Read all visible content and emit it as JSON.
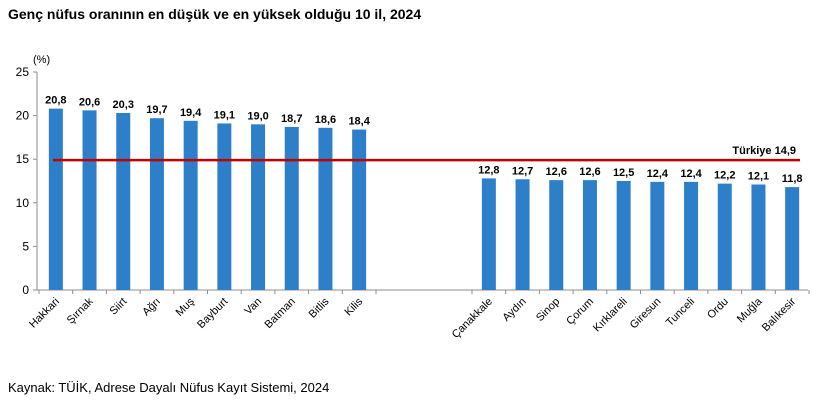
{
  "title": "Genç nüfus oranının en düşük ve en yüksek olduğu 10 il, 2024",
  "source": "Kaynak: TÜİK, Adrese Dayalı Nüfus Kayıt Sistemi, 2024",
  "colors": {
    "bar": "#2E7FC9",
    "reference": "#C00000",
    "axis": "#8c8c8c"
  },
  "chart_data": {
    "type": "bar",
    "title": "Genç nüfus oranının en düşük ve en yüksek olduğu 10 il, 2024",
    "ylabel": "(%)",
    "ylim": [
      0,
      25
    ],
    "yticks": [
      "0",
      "5",
      "10",
      "15",
      "20",
      "25"
    ],
    "groups": [
      {
        "categories": [
          "Hakkari",
          "Şırnak",
          "Siirt",
          "Ağrı",
          "Muş",
          "Bayburt",
          "Van",
          "Batman",
          "Bitlis",
          "Kilis"
        ],
        "values": [
          20.8,
          20.6,
          20.3,
          19.7,
          19.4,
          19.1,
          19.0,
          18.7,
          18.6,
          18.4
        ],
        "labels": [
          "20,8",
          "20,6",
          "20,3",
          "19,7",
          "19,4",
          "19,1",
          "19,0",
          "18,7",
          "18,6",
          "18,4"
        ]
      },
      {
        "categories": [
          "Çanakkale",
          "Aydın",
          "Sinop",
          "Çorum",
          "Kırklareli",
          "Giresun",
          "Tunceli",
          "Ordu",
          "Muğla",
          "Balıkesir"
        ],
        "values": [
          12.8,
          12.7,
          12.6,
          12.6,
          12.5,
          12.4,
          12.4,
          12.2,
          12.1,
          11.8
        ],
        "labels": [
          "12,8",
          "12,7",
          "12,6",
          "12,6",
          "12,5",
          "12,4",
          "12,4",
          "12,2",
          "12,1",
          "11,8"
        ]
      }
    ],
    "reference_line": {
      "value": 14.9,
      "label": "Türkiye 14,9"
    }
  }
}
